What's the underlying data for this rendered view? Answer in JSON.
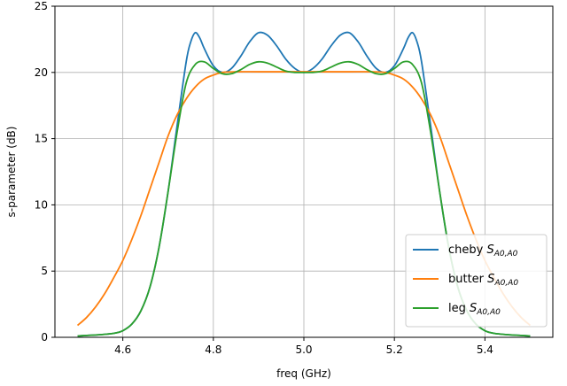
{
  "chart_data": {
    "type": "line",
    "title": "",
    "xlabel": "freq (GHz)",
    "ylabel": "s-parameter (dB)",
    "xlim": [
      4.45,
      5.55
    ],
    "ylim": [
      0,
      25
    ],
    "xticks": [
      4.6,
      4.8,
      5.0,
      5.2,
      5.4
    ],
    "xtick_labels": [
      "4.6",
      "4.8",
      "5.0",
      "5.2",
      "5.4"
    ],
    "yticks": [
      0,
      5,
      10,
      15,
      20,
      25
    ],
    "ytick_labels": [
      "0",
      "5",
      "10",
      "15",
      "20",
      "25"
    ],
    "grid": true,
    "legend_position": "lower-right",
    "series": [
      {
        "name": "cheby",
        "subscript": "A0,A0",
        "color": "#1f77b4",
        "x": [
          4.5,
          4.55,
          4.58,
          4.6,
          4.62,
          4.64,
          4.66,
          4.68,
          4.7,
          4.72,
          4.74,
          4.75,
          4.76,
          4.77,
          4.78,
          4.8,
          4.82,
          4.84,
          4.86,
          4.88,
          4.9,
          4.92,
          4.94,
          4.96,
          4.98,
          5.0,
          5.02,
          5.04,
          5.06,
          5.08,
          5.1,
          5.12,
          5.14,
          5.16,
          5.18,
          5.2,
          5.22,
          5.23,
          5.24,
          5.25,
          5.26,
          5.28,
          5.3,
          5.32,
          5.34,
          5.36,
          5.38,
          5.4,
          5.42,
          5.45,
          5.5
        ],
        "y": [
          0.1,
          0.2,
          0.3,
          0.5,
          1.0,
          2.0,
          3.8,
          6.8,
          11.0,
          16.0,
          20.8,
          22.3,
          23.0,
          22.6,
          21.8,
          20.5,
          20.0,
          20.3,
          21.2,
          22.3,
          23.0,
          22.8,
          22.0,
          21.0,
          20.3,
          20.0,
          20.3,
          21.0,
          22.0,
          22.8,
          23.0,
          22.3,
          21.2,
          20.3,
          20.0,
          20.5,
          21.8,
          22.6,
          23.0,
          22.3,
          20.8,
          16.0,
          11.0,
          6.8,
          3.8,
          2.0,
          1.0,
          0.5,
          0.3,
          0.2,
          0.1
        ]
      },
      {
        "name": "butter",
        "subscript": "A0,A0",
        "color": "#ff7f0e",
        "x": [
          4.5,
          4.52,
          4.54,
          4.56,
          4.58,
          4.6,
          4.62,
          4.64,
          4.66,
          4.68,
          4.7,
          4.72,
          4.74,
          4.76,
          4.78,
          4.8,
          4.82,
          4.85,
          4.9,
          4.95,
          5.0,
          5.05,
          5.1,
          5.15,
          5.18,
          5.2,
          5.22,
          5.24,
          5.26,
          5.28,
          5.3,
          5.32,
          5.34,
          5.36,
          5.38,
          5.4,
          5.42,
          5.44,
          5.46,
          5.48,
          5.5
        ],
        "y": [
          0.9,
          1.5,
          2.3,
          3.3,
          4.5,
          5.8,
          7.4,
          9.2,
          11.2,
          13.2,
          15.2,
          16.8,
          18.0,
          18.9,
          19.5,
          19.8,
          20.0,
          20.05,
          20.05,
          20.05,
          20.05,
          20.05,
          20.05,
          20.05,
          20.0,
          19.8,
          19.5,
          18.9,
          18.0,
          16.8,
          15.2,
          13.2,
          11.2,
          9.2,
          7.4,
          5.8,
          4.5,
          3.3,
          2.3,
          1.5,
          0.9
        ]
      },
      {
        "name": "leg",
        "subscript": "A0,A0",
        "color": "#2ca02c",
        "x": [
          4.5,
          4.55,
          4.58,
          4.6,
          4.62,
          4.64,
          4.66,
          4.68,
          4.7,
          4.72,
          4.74,
          4.76,
          4.78,
          4.8,
          4.82,
          4.84,
          4.86,
          4.88,
          4.9,
          4.92,
          4.94,
          4.96,
          4.98,
          5.0,
          5.02,
          5.04,
          5.06,
          5.08,
          5.1,
          5.12,
          5.14,
          5.16,
          5.18,
          5.2,
          5.22,
          5.24,
          5.26,
          5.28,
          5.3,
          5.32,
          5.34,
          5.36,
          5.38,
          5.4,
          5.42,
          5.45,
          5.5
        ],
        "y": [
          0.1,
          0.2,
          0.3,
          0.5,
          1.0,
          2.0,
          3.8,
          6.8,
          11.0,
          15.5,
          19.2,
          20.6,
          20.8,
          20.3,
          19.9,
          19.9,
          20.2,
          20.6,
          20.8,
          20.7,
          20.4,
          20.1,
          20.0,
          20.0,
          20.0,
          20.1,
          20.4,
          20.7,
          20.8,
          20.6,
          20.2,
          19.9,
          19.9,
          20.3,
          20.8,
          20.6,
          19.2,
          15.5,
          11.0,
          6.8,
          3.8,
          2.0,
          1.0,
          0.5,
          0.3,
          0.2,
          0.1
        ]
      }
    ]
  }
}
